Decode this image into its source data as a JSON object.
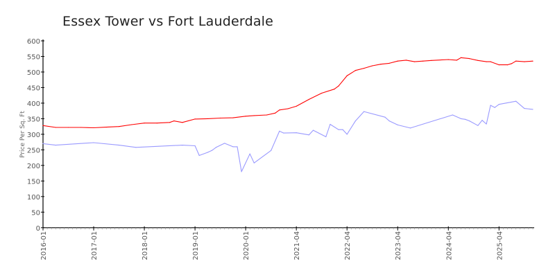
{
  "chart_data": {
    "type": "line",
    "title": "Essex Tower vs Fort Lauderdale",
    "xlabel": "",
    "ylabel": "Price Per Sq. Ft",
    "ylim": [
      0,
      600
    ],
    "yticks": [
      0,
      50,
      100,
      150,
      200,
      250,
      300,
      350,
      400,
      450,
      500,
      550,
      600
    ],
    "xtick_labels": [
      "2016-01",
      "2017-01",
      "2018-01",
      "2019-01",
      "2020-01",
      "2021-04",
      "2022-04",
      "2023-04",
      "2024-04",
      "2025-04"
    ],
    "categories": [
      "2016-01",
      "2016-02",
      "2016-03",
      "2016-04",
      "2016-05",
      "2016-06",
      "2016-07",
      "2016-08",
      "2016-09",
      "2016-10",
      "2016-11",
      "2016-12",
      "2017-01",
      "2017-02",
      "2017-03",
      "2017-04",
      "2017-05",
      "2017-06",
      "2017-07",
      "2017-08",
      "2017-09",
      "2017-10",
      "2017-11",
      "2017-12",
      "2018-01",
      "2018-02",
      "2018-03",
      "2018-04",
      "2018-05",
      "2018-06",
      "2018-07",
      "2018-08",
      "2018-09",
      "2018-10",
      "2018-11",
      "2018-12",
      "2019-01",
      "2019-02",
      "2019-03",
      "2019-04",
      "2019-05",
      "2019-06",
      "2019-07",
      "2019-08",
      "2019-09",
      "2019-10",
      "2019-11",
      "2019-12",
      "2020-01",
      "2020-02",
      "2020-03",
      "2020-07",
      "2020-08",
      "2020-09",
      "2020-10",
      "2020-11",
      "2020-12",
      "2021-01",
      "2021-02",
      "2021-03",
      "2021-04",
      "2021-05",
      "2021-06",
      "2021-07",
      "2021-08",
      "2021-09",
      "2021-10",
      "2021-11",
      "2021-12",
      "2022-01",
      "2022-02",
      "2022-03",
      "2022-04",
      "2022-05",
      "2022-06",
      "2022-07",
      "2022-08",
      "2022-09",
      "2022-10",
      "2022-11",
      "2022-12",
      "2023-01",
      "2023-02",
      "2023-03",
      "2023-04",
      "2023-05",
      "2023-06",
      "2023-07",
      "2023-08",
      "2023-09",
      "2023-10",
      "2023-11",
      "2023-12",
      "2024-01",
      "2024-02",
      "2024-03",
      "2024-04",
      "2024-05",
      "2024-06",
      "2024-07",
      "2024-08",
      "2024-09",
      "2024-10",
      "2024-11",
      "2024-12",
      "2025-01",
      "2025-02",
      "2025-03",
      "2025-04",
      "2025-05",
      "2025-06",
      "2025-07",
      "2025-08",
      "2025-09",
      "2025-10",
      "2025-11",
      "2025-12"
    ],
    "grid": false,
    "legend": "none",
    "series": [
      {
        "color": "#ff0000",
        "points": [
          [
            "2016-01",
            328
          ],
          [
            "2016-04",
            322
          ],
          [
            "2016-07",
            322
          ],
          [
            "2016-10",
            322
          ],
          [
            "2017-01",
            321
          ],
          [
            "2017-04",
            323
          ],
          [
            "2017-07",
            325
          ],
          [
            "2017-10",
            331
          ],
          [
            "2018-01",
            336
          ],
          [
            "2018-04",
            336
          ],
          [
            "2018-07",
            338
          ],
          [
            "2018-08",
            343
          ],
          [
            "2018-10",
            338
          ],
          [
            "2019-01",
            349
          ],
          [
            "2019-04",
            350
          ],
          [
            "2019-07",
            352
          ],
          [
            "2019-10",
            353
          ],
          [
            "2020-01",
            358
          ],
          [
            "2020-03",
            360
          ],
          [
            "2020-09",
            362
          ],
          [
            "2020-11",
            368
          ],
          [
            "2020-12",
            378
          ],
          [
            "2021-02",
            382
          ],
          [
            "2021-04",
            390
          ],
          [
            "2021-07",
            412
          ],
          [
            "2021-10",
            432
          ],
          [
            "2022-01",
            445
          ],
          [
            "2022-02",
            455
          ],
          [
            "2022-04",
            488
          ],
          [
            "2022-06",
            505
          ],
          [
            "2022-08",
            512
          ],
          [
            "2022-10",
            520
          ],
          [
            "2022-12",
            525
          ],
          [
            "2023-02",
            528
          ],
          [
            "2023-04",
            535
          ],
          [
            "2023-06",
            538
          ],
          [
            "2023-08",
            533
          ],
          [
            "2023-10",
            535
          ],
          [
            "2023-12",
            537
          ],
          [
            "2024-04",
            540
          ],
          [
            "2024-06",
            538
          ],
          [
            "2024-07",
            546
          ],
          [
            "2024-09",
            543
          ],
          [
            "2024-11",
            537
          ],
          [
            "2025-01",
            533
          ],
          [
            "2025-02",
            533
          ],
          [
            "2025-04",
            523
          ],
          [
            "2025-06",
            523
          ],
          [
            "2025-07",
            527
          ],
          [
            "2025-08",
            535
          ],
          [
            "2025-10",
            533
          ],
          [
            "2025-12",
            535
          ]
        ]
      },
      {
        "color": "#9999ff",
        "points": [
          [
            "2016-01",
            270
          ],
          [
            "2016-04",
            265
          ],
          [
            "2017-01",
            273
          ],
          [
            "2017-07",
            265
          ],
          [
            "2017-11",
            258
          ],
          [
            "2018-10",
            265
          ],
          [
            "2019-01",
            263
          ],
          [
            "2019-02",
            232
          ],
          [
            "2019-04",
            242
          ],
          [
            "2019-05",
            248
          ],
          [
            "2019-06",
            258
          ],
          [
            "2019-08",
            271
          ],
          [
            "2019-10",
            260
          ],
          [
            "2019-11",
            260
          ],
          [
            "2019-12",
            180
          ],
          [
            "2020-02",
            237
          ],
          [
            "2020-03",
            208
          ],
          [
            "2020-10",
            248
          ],
          [
            "2020-12",
            310
          ],
          [
            "2021-01",
            304
          ],
          [
            "2021-04",
            305
          ],
          [
            "2021-07",
            298
          ],
          [
            "2021-08",
            313
          ],
          [
            "2021-11",
            292
          ],
          [
            "2021-12",
            332
          ],
          [
            "2022-02",
            315
          ],
          [
            "2022-03",
            315
          ],
          [
            "2022-04",
            300
          ],
          [
            "2022-06",
            343
          ],
          [
            "2022-08",
            373
          ],
          [
            "2023-01",
            355
          ],
          [
            "2023-02",
            343
          ],
          [
            "2023-04",
            330
          ],
          [
            "2023-07",
            320
          ],
          [
            "2024-05",
            362
          ],
          [
            "2024-07",
            350
          ],
          [
            "2024-08",
            348
          ],
          [
            "2024-09",
            343
          ],
          [
            "2024-11",
            328
          ],
          [
            "2024-12",
            345
          ],
          [
            "2025-01",
            333
          ],
          [
            "2025-02",
            393
          ],
          [
            "2025-03",
            386
          ],
          [
            "2025-04",
            396
          ],
          [
            "2025-08",
            406
          ],
          [
            "2025-10",
            383
          ],
          [
            "2025-12",
            380
          ]
        ]
      }
    ]
  }
}
